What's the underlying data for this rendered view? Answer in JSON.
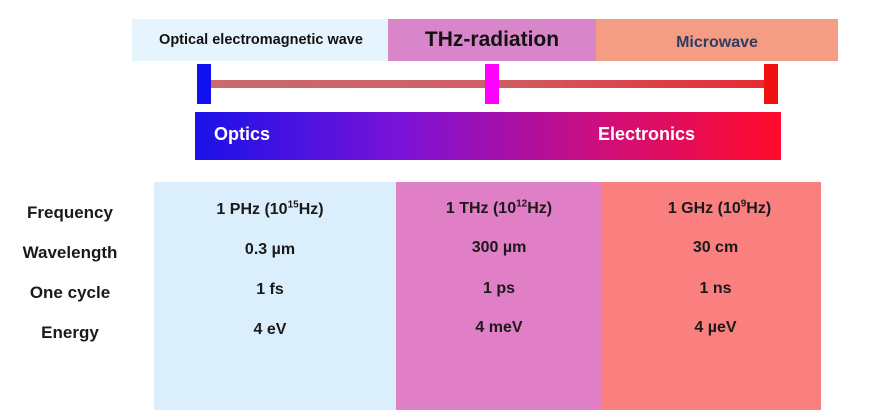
{
  "bands": {
    "optical": "Optical electromagnetic wave",
    "thz": "THz-radiation",
    "microwave": "Microwave"
  },
  "gradient": {
    "left": "Optics",
    "right": "Electronics"
  },
  "colors": {
    "optical": "#e6f5fd",
    "thz": "#d985c9",
    "microwave": "#f59d84",
    "tick_left": "#1010f0",
    "tick_mid": "#ff00ff",
    "tick_right": "#f01010"
  },
  "table": {
    "row_labels": [
      "Frequency",
      "Wavelength",
      "One cycle",
      "Energy"
    ],
    "optical": {
      "freq_base": "1 PHz (10",
      "freq_exp": "15",
      "freq_unit": "Hz)",
      "wavelength": "0.3 µm",
      "cycle": "1 fs",
      "energy": "4 eV"
    },
    "thz": {
      "freq_base": "1 THz (10",
      "freq_exp": "12",
      "freq_unit": "Hz)",
      "wavelength": "300 µm",
      "cycle": "1 ps",
      "energy": "4 meV"
    },
    "microwave": {
      "freq_base": "1 GHz (10",
      "freq_exp": "9",
      "freq_unit": "Hz)",
      "wavelength": "30 cm",
      "cycle": "1 ns",
      "energy": "4 µeV"
    }
  }
}
